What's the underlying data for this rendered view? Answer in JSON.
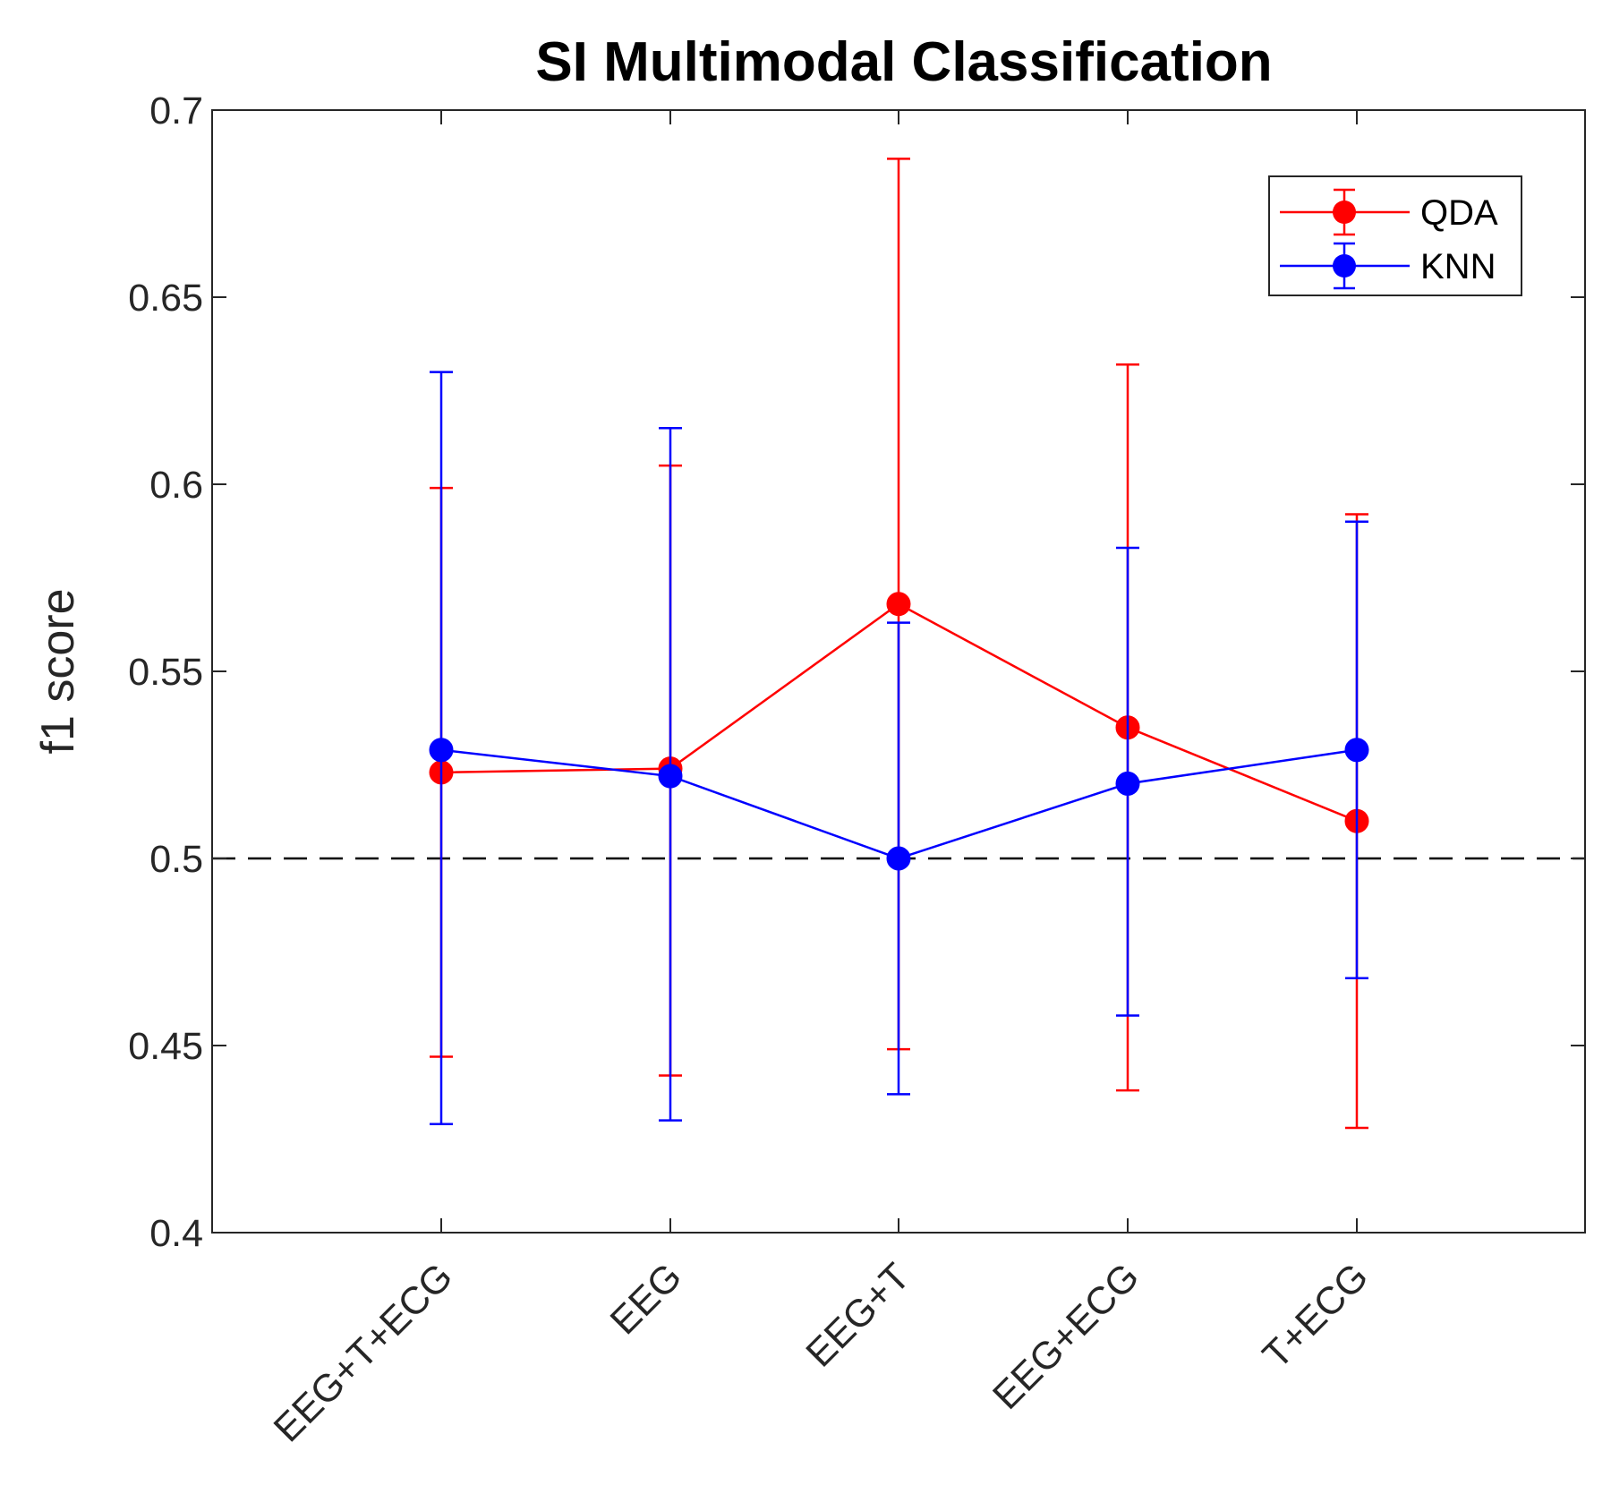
{
  "chart_data": {
    "type": "line",
    "title": "SI Multimodal Classification",
    "xlabel": "",
    "ylabel": "f1 score",
    "categories": [
      "EEG+T+ECG",
      "EEG",
      "EEG+T",
      "EEG+ECG",
      "T+ECG"
    ],
    "ylim": [
      0.4,
      0.7
    ],
    "yticks": [
      0.4,
      0.45,
      0.5,
      0.55,
      0.6,
      0.65,
      0.7
    ],
    "ytick_labels": [
      "0.4",
      "0.45",
      "0.5",
      "0.55",
      "0.6",
      "0.65",
      "0.7"
    ],
    "reference_line": {
      "y": 0.5,
      "style": "dashed",
      "color": "#000000"
    },
    "legend": {
      "position": "top-right"
    },
    "series": [
      {
        "name": "QDA",
        "color": "#ff0000",
        "values": [
          0.523,
          0.524,
          0.568,
          0.535,
          0.51
        ],
        "err_upper": [
          0.599,
          0.605,
          0.687,
          0.632,
          0.592
        ],
        "err_lower": [
          0.447,
          0.442,
          0.449,
          0.438,
          0.428
        ]
      },
      {
        "name": "KNN",
        "color": "#0000ff",
        "values": [
          0.529,
          0.522,
          0.5,
          0.52,
          0.529
        ],
        "err_upper": [
          0.63,
          0.615,
          0.563,
          0.583,
          0.59
        ],
        "err_lower": [
          0.429,
          0.43,
          0.437,
          0.458,
          0.468
        ]
      }
    ]
  }
}
